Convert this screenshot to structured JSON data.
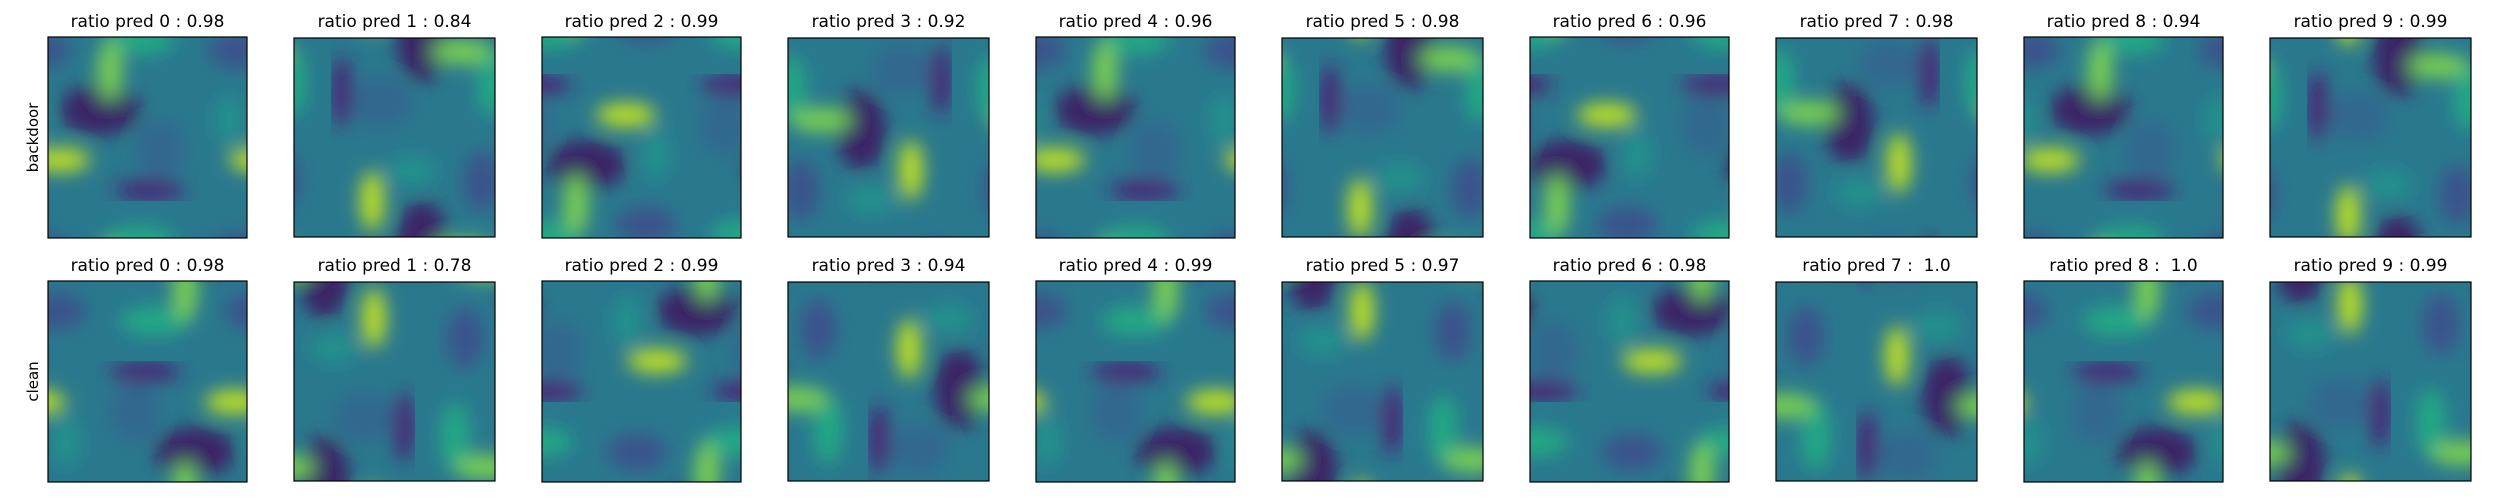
{
  "rows": [
    {
      "label": "backdoor",
      "panels": [
        {
          "title": "ratio pred 0 : 0.98"
        },
        {
          "title": "ratio pred 1 : 0.84"
        },
        {
          "title": "ratio pred 2 : 0.99"
        },
        {
          "title": "ratio pred 3 : 0.92"
        },
        {
          "title": "ratio pred 4 : 0.96"
        },
        {
          "title": "ratio pred 5 : 0.98"
        },
        {
          "title": "ratio pred 6 : 0.96"
        },
        {
          "title": "ratio pred 7 : 0.98"
        },
        {
          "title": "ratio pred 8 : 0.94"
        },
        {
          "title": "ratio pred 9 : 0.99"
        }
      ]
    },
    {
      "label": "clean",
      "panels": [
        {
          "title": "ratio pred 0 : 0.98"
        },
        {
          "title": "ratio pred 1 : 0.78"
        },
        {
          "title": "ratio pred 2 : 0.99"
        },
        {
          "title": "ratio pred 3 : 0.94"
        },
        {
          "title": "ratio pred 4 : 0.99"
        },
        {
          "title": "ratio pred 5 : 0.97"
        },
        {
          "title": "ratio pred 6 : 0.98"
        },
        {
          "title": "ratio pred 7 :  1.0"
        },
        {
          "title": "ratio pred 8 :  1.0"
        },
        {
          "title": "ratio pred 9 : 0.99"
        }
      ]
    }
  ]
}
